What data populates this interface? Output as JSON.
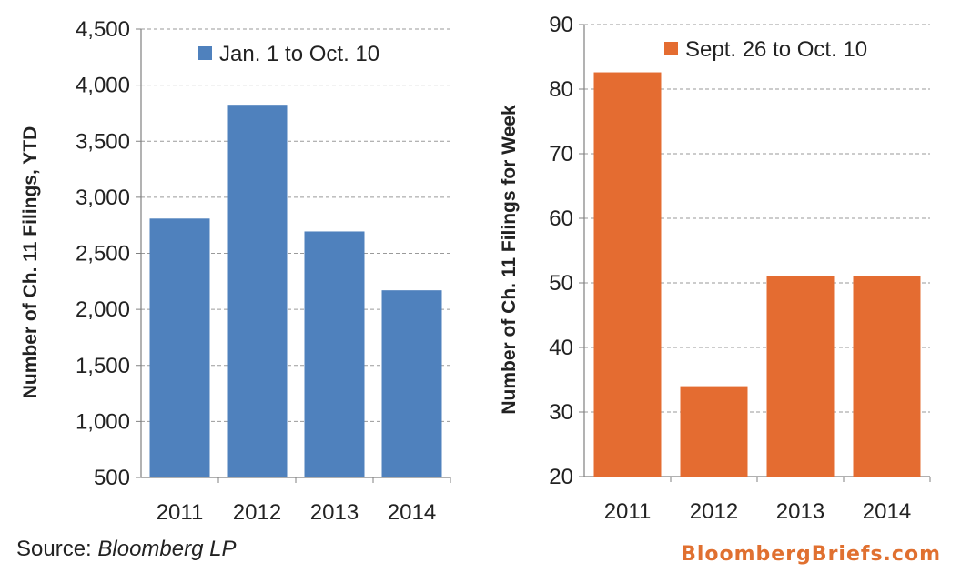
{
  "source": {
    "label": "Source:",
    "name": "Bloomberg LP"
  },
  "brand": {
    "text": "BloombergBriefs.com",
    "color": "#e07030"
  },
  "chart_data": [
    {
      "type": "bar",
      "categories": [
        "2011",
        "2012",
        "2013",
        "2014"
      ],
      "series": [
        {
          "name": "Jan. 1 to Oct. 10",
          "values": [
            2810,
            3825,
            2695,
            2170
          ],
          "color": "#4f81bd"
        }
      ],
      "ylabel": "Number of Ch. 11 Filings, YTD",
      "ylim": [
        500,
        4500
      ],
      "yticks": [
        500,
        1000,
        1500,
        2000,
        2500,
        3000,
        3500,
        4000,
        4500
      ],
      "ytick_labels": [
        "500",
        "1,000",
        "1,500",
        "2,000",
        "2,500",
        "3,000",
        "3,500",
        "4,000",
        "4,500"
      ],
      "grid": true,
      "legend_position": "top-center"
    },
    {
      "type": "bar",
      "categories": [
        "2011",
        "2012",
        "2013",
        "2014"
      ],
      "series": [
        {
          "name": "Sept. 26 to Oct. 10",
          "values": [
            82.6,
            34,
            51,
            51
          ],
          "color": "#e46c31"
        }
      ],
      "ylabel": "Number of Ch. 11 Filings for Week",
      "ylim": [
        20,
        90
      ],
      "yticks": [
        20,
        30,
        40,
        50,
        60,
        70,
        80,
        90
      ],
      "ytick_labels": [
        "20",
        "30",
        "40",
        "50",
        "60",
        "70",
        "80",
        "90"
      ],
      "grid": true,
      "legend_position": "top-center"
    }
  ]
}
